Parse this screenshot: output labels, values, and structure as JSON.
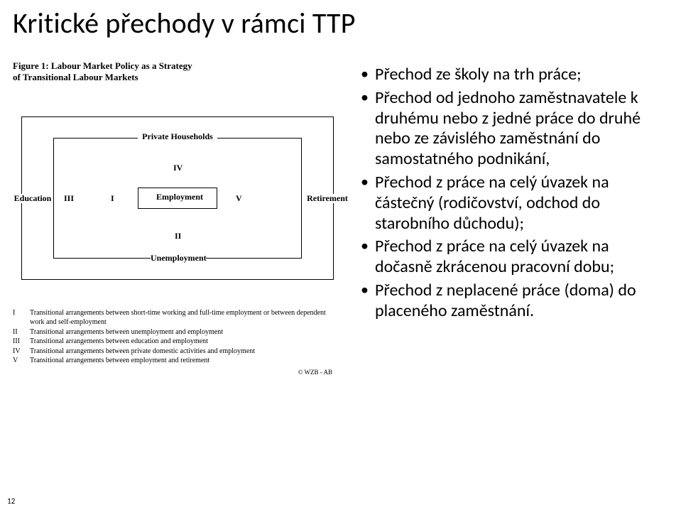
{
  "title": "Kritické přechody v rámci TTP",
  "figure": {
    "caption_line1": "Figure 1: Labour Market Policy as a Strategy",
    "caption_line2": "of Transitional Labour Markets",
    "labels": {
      "private": "Private Households",
      "employment": "Employment",
      "education": "Education",
      "retirement": "Retirement",
      "unemployment": "Unemployment"
    },
    "roman": {
      "i": "I",
      "ii": "II",
      "iii": "III",
      "iv": "IV",
      "v": "V"
    },
    "legend": {
      "i": {
        "rn": "I",
        "text": "Transitional arrangements between short-time working and full-time employment or between dependent work and self-employment"
      },
      "ii": {
        "rn": "II",
        "text": "Transitional arrangements between unemployment and employment"
      },
      "iii": {
        "rn": "III",
        "text": "Transitional arrangements between education and employment"
      },
      "iv": {
        "rn": "IV",
        "text": "Transitional arrangements between private domestic activities and employment"
      },
      "v": {
        "rn": "V",
        "text": "Transitional arrangements between employment and retirement"
      }
    },
    "credit": "© WZB - AB"
  },
  "bullets": {
    "b1": "Přechod ze školy na trh práce;",
    "b2": "Přechod od jednoho zaměstnavatele k druhému nebo z jedné práce do druhé nebo ze závislého zaměstnání do samostatného podnikání,",
    "b3": "Přechod z práce na celý úvazek na částečný (rodičovství, odchod do starobního důchodu);",
    "b4": "Přechod z práce na celý úvazek na dočasně zkrácenou pracovní dobu;",
    "b5": "Přechod z neplacené práce (doma) do placeného zaměstnání."
  },
  "page_number": "12",
  "colors": {
    "text": "#000000",
    "border": "#000000",
    "background": "#ffffff"
  }
}
